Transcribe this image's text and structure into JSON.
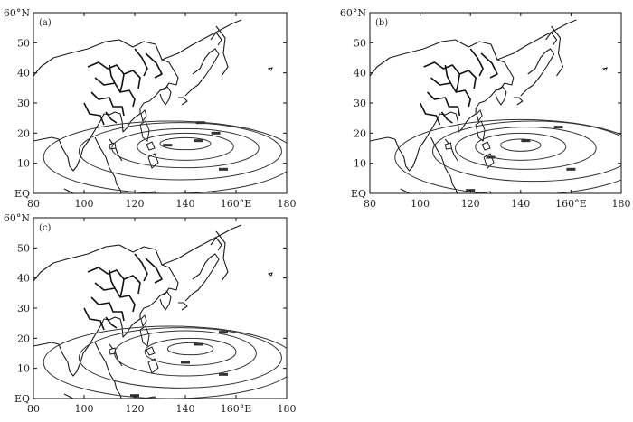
{
  "figure": {
    "lat_ticks": [
      "60°N",
      "50",
      "40",
      "30",
      "20",
      "10",
      "EQ"
    ],
    "lon_ticks": [
      "80",
      "100",
      "120",
      "140",
      "160°E",
      "180"
    ],
    "lon_range": [
      80,
      180
    ],
    "lat_range": [
      0,
      60
    ],
    "panels": [
      {
        "label": "(a)",
        "contours": [
          {
            "lon": 140,
            "lat": 16.5,
            "rlon": 10,
            "rlat": 2.0,
            "label_lon": 145,
            "label_lat": 17.5
          },
          {
            "lon": 140,
            "lat": 15.5,
            "rlon": 19,
            "rlat": 4.5,
            "label_lon": 133,
            "label_lat": 16
          },
          {
            "lon": 140,
            "lat": 15,
            "rlon": 29,
            "rlat": 6.5,
            "label_lon": 152,
            "label_lat": 20
          },
          {
            "lon": 138,
            "lat": 14,
            "rlon": 40,
            "rlat": 9.5,
            "label_lon": 146,
            "label_lat": 23.5
          },
          {
            "lon": 134,
            "lat": 12,
            "rlon": 50,
            "rlat": 12,
            "label_lon": 155,
            "label_lat": 8
          }
        ]
      },
      {
        "label": "(b)",
        "contours": [
          {
            "lon": 140,
            "lat": 16,
            "rlon": 8,
            "rlat": 2.0,
            "label_lon": 142,
            "label_lat": 17.5
          },
          {
            "lon": 140,
            "lat": 15.5,
            "rlon": 18,
            "rlat": 4.5,
            "label_lon": 128,
            "label_lat": 12
          },
          {
            "lon": 142,
            "lat": 15,
            "rlon": 28,
            "rlat": 7,
            "label_lon": 155,
            "label_lat": 22
          },
          {
            "lon": 145,
            "lat": 14,
            "rlon": 40,
            "rlat": 10,
            "label_lon": 160,
            "label_lat": 8
          },
          {
            "lon": 140,
            "lat": 12,
            "rlon": 50,
            "rlat": 12.5,
            "label_lon": 120,
            "label_lat": 1
          }
        ]
      },
      {
        "label": "(c)",
        "contours": [
          {
            "lon": 142,
            "lat": 16.5,
            "rlon": 9,
            "rlat": 2.0,
            "label_lon": 145,
            "label_lat": 18
          },
          {
            "lon": 142,
            "lat": 15.5,
            "rlon": 18,
            "rlat": 4.5,
            "label_lon": 140,
            "label_lat": 12
          },
          {
            "lon": 140,
            "lat": 15,
            "rlon": 28,
            "rlat": 7.5,
            "label_lon": 155,
            "label_lat": 22
          },
          {
            "lon": 138,
            "lat": 13.5,
            "rlon": 40,
            "rlat": 10,
            "label_lon": 155,
            "label_lat": 8
          },
          {
            "lon": 134,
            "lat": 12,
            "rlon": 50,
            "rlat": 12,
            "label_lon": 120,
            "label_lat": 1
          }
        ]
      }
    ]
  }
}
